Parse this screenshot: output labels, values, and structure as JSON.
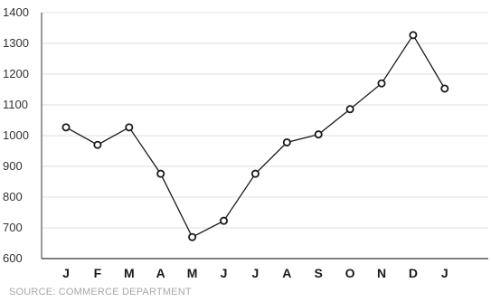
{
  "chart_data": {
    "type": "line",
    "categories": [
      "J",
      "F",
      "M",
      "A",
      "M",
      "J",
      "J",
      "A",
      "S",
      "O",
      "N",
      "D",
      "J"
    ],
    "values": [
      1027,
      970,
      1027,
      876,
      670,
      723,
      876,
      978,
      1004,
      1086,
      1170,
      1327,
      1153
    ],
    "ylim": [
      600,
      1400
    ],
    "yticks": [
      600,
      700,
      800,
      900,
      1000,
      1100,
      1200,
      1300,
      1400
    ],
    "grid": true,
    "line_color": "#1a1a1a",
    "grid_color": "#d4d4d4",
    "marker": "open-circle"
  },
  "source_note": "SOURCE: COMMERCE DEPARTMENT"
}
